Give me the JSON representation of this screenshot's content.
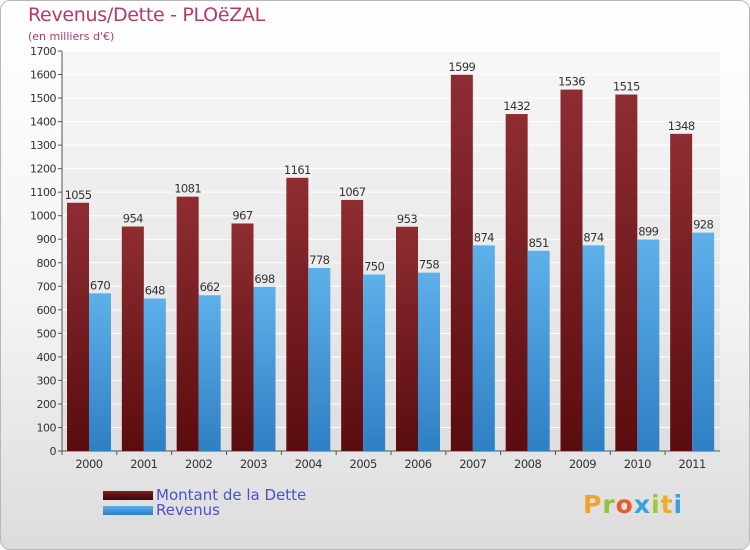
{
  "header": {
    "title": "Revenus/Dette - PLOëZAL",
    "subtitle": "(en milliers d'€)"
  },
  "logo": {
    "text": "Proxiti"
  },
  "colors": {
    "dette": "#7a1f22",
    "revenus": "#4a9fe0",
    "title": "#b5386a",
    "legend_text": "#4a52d0"
  },
  "chart_data": {
    "type": "bar",
    "title": "Revenus/Dette - PLOëZAL",
    "subtitle": "(en milliers d'€)",
    "categories": [
      "2000",
      "2001",
      "2002",
      "2003",
      "2004",
      "2005",
      "2006",
      "2007",
      "2008",
      "2009",
      "2010",
      "2011"
    ],
    "series": [
      {
        "name": "Montant de la Dette",
        "color": "#7a1f22",
        "values": [
          1055,
          954,
          1081,
          967,
          1161,
          1067,
          953,
          1599,
          1432,
          1536,
          1515,
          1348
        ]
      },
      {
        "name": "Revenus",
        "color": "#4a9fe0",
        "values": [
          670,
          648,
          662,
          698,
          778,
          750,
          758,
          874,
          851,
          874,
          899,
          928
        ]
      }
    ],
    "ylim": [
      0,
      1700
    ],
    "yticks": [
      0,
      100,
      200,
      300,
      400,
      500,
      600,
      700,
      800,
      900,
      1000,
      1100,
      1200,
      1300,
      1400,
      1500,
      1600,
      1700
    ],
    "grid": true,
    "legend_position": "bottom-left"
  }
}
